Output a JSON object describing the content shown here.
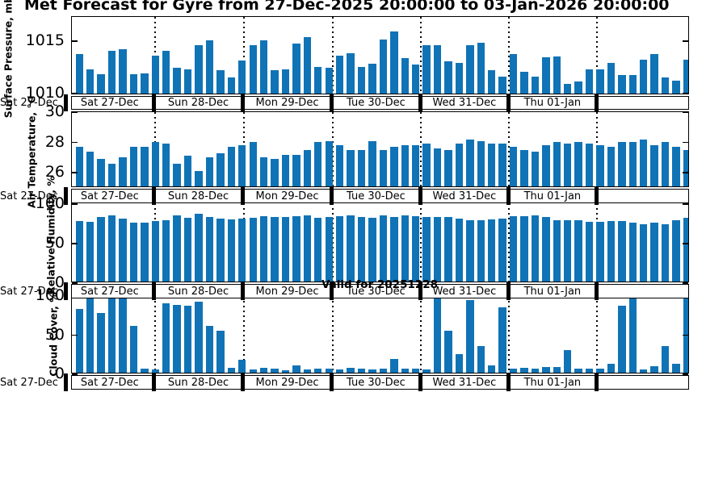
{
  "title": "Met Forecast for Gyre from 27-Dec-2025 20:00:00 to 03-Jan-2026 20:00:00",
  "colors": {
    "bar": "#1073b6",
    "axis": "#000000"
  },
  "edge_day_label": "Sat 27-Dec",
  "day_segments": [
    "Sat 27-Dec",
    "Sun 28-Dec",
    "Mon 29-Dec",
    "Tue 30-Dec",
    "Wed 31-Dec",
    "Thu 01-Jan"
  ],
  "chart_data": [
    {
      "type": "bar",
      "ylabel": "Surface Pressure, mb",
      "yticks": [
        1010,
        1015
      ],
      "ylim": [
        1009.9,
        1017.3
      ],
      "categories_note": "3-hourly bars grouped by day segments",
      "values": [
        1013.6,
        1012.2,
        1011.7,
        1013.9,
        1014.1,
        1011.7,
        1011.8,
        1013.5,
        1013.9,
        1012.3,
        1012.2,
        1014.5,
        1014.9,
        1012.1,
        1011.4,
        1013.0,
        1014.5,
        1014.9,
        1012.1,
        1012.2,
        1014.6,
        1015.2,
        1012.4,
        1012.3,
        1013.5,
        1013.7,
        1012.4,
        1012.7,
        1015.0,
        1015.8,
        1013.2,
        1012.6,
        1014.5,
        1014.5,
        1012.9,
        1012.8,
        1014.5,
        1014.7,
        1012.1,
        1011.5,
        1013.6,
        1011.9,
        1011.5,
        1013.3,
        1013.4,
        1010.8,
        1011.0,
        1012.2,
        1012.2,
        1012.8,
        1011.6,
        1011.6,
        1013.1,
        1013.6,
        1011.4,
        1011.1,
        1013.1
      ],
      "title": ""
    },
    {
      "type": "bar",
      "ylabel": "Air Temperature, °C",
      "yticks": [
        26,
        28,
        30
      ],
      "ylim": [
        25,
        30
      ],
      "values": [
        27.6,
        27.3,
        26.8,
        26.5,
        26.9,
        27.6,
        27.6,
        27.9,
        27.8,
        26.5,
        27.0,
        26.0,
        26.9,
        27.2,
        27.6,
        27.7,
        27.9,
        26.9,
        26.8,
        27.1,
        27.1,
        27.4,
        27.9,
        28.0,
        27.7,
        27.4,
        27.4,
        28.0,
        27.4,
        27.6,
        27.7,
        27.7,
        27.8,
        27.5,
        27.4,
        27.8,
        28.1,
        28.0,
        27.8,
        27.8,
        27.6,
        27.4,
        27.3,
        27.7,
        27.9,
        27.8,
        27.9,
        27.8,
        27.7,
        27.6,
        27.9,
        27.9,
        28.1,
        27.7,
        27.9,
        27.6,
        27.4
      ],
      "title": ""
    },
    {
      "type": "bar",
      "ylabel": "Relative Humidity, %",
      "yticks": [
        0,
        50,
        100
      ],
      "ylim": [
        0,
        101
      ],
      "values": [
        77,
        76,
        82,
        84,
        80,
        74,
        75,
        77,
        78,
        84,
        81,
        86,
        82,
        80,
        79,
        80,
        81,
        83,
        82,
        82,
        83,
        84,
        81,
        82,
        83,
        84,
        82,
        81,
        84,
        82,
        84,
        83,
        82,
        82,
        82,
        80,
        78,
        78,
        79,
        80,
        83,
        83,
        84,
        82,
        78,
        78,
        78,
        76,
        76,
        77,
        77,
        75,
        72,
        75,
        72,
        78,
        81
      ],
      "title": ""
    },
    {
      "type": "bar",
      "ylabel": "Cloud Cover, %",
      "yticks": [
        0,
        50,
        100
      ],
      "ylim": [
        0,
        100
      ],
      "values": [
        81,
        98,
        76,
        100,
        100,
        60,
        5,
        4,
        89,
        87,
        86,
        91,
        60,
        54,
        6,
        16,
        4,
        6,
        5,
        3,
        9,
        4,
        5,
        5,
        4,
        6,
        5,
        4,
        5,
        18,
        5,
        5,
        4,
        100,
        54,
        24,
        93,
        34,
        9,
        84,
        5,
        6,
        5,
        7,
        7,
        29,
        5,
        5,
        5,
        11,
        86,
        97,
        4,
        8,
        34,
        11,
        100
      ],
      "title": "Valid for 20251228"
    }
  ]
}
